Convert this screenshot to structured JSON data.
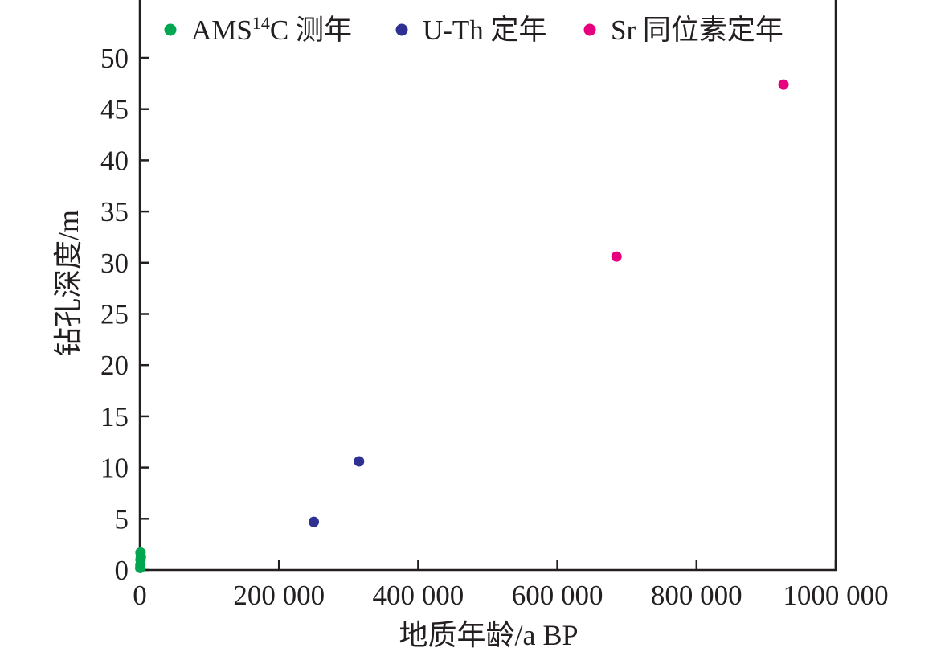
{
  "chart_data": {
    "type": "scatter",
    "xlabel": "地质年龄/a BP",
    "ylabel": "钻孔深度/m",
    "xlim": [
      0,
      1000000
    ],
    "ylim": [
      0,
      50
    ],
    "x_ticks": [
      0,
      200000,
      400000,
      600000,
      800000,
      1000000
    ],
    "x_tick_labels": [
      "0",
      "200 000",
      "400 000",
      "600 000",
      "800 000",
      "1000 000"
    ],
    "y_ticks": [
      0,
      5,
      10,
      15,
      20,
      25,
      30,
      35,
      40,
      45,
      50
    ],
    "y_tick_labels": [
      "0",
      "5",
      "10",
      "15",
      "20",
      "25",
      "30",
      "35",
      "40",
      "45",
      "50"
    ],
    "legend_position": "top",
    "series": [
      {
        "name_parts": {
          "pre": "AMS",
          "sup": "14",
          "post": "C 测年"
        },
        "color": "#00a650",
        "points": [
          [
            1000,
            1.7
          ],
          [
            1500,
            1.3
          ],
          [
            1000,
            1.0
          ],
          [
            800,
            0.5
          ],
          [
            600,
            0.2
          ]
        ]
      },
      {
        "name": "U-Th 定年",
        "color": "#2e3192",
        "points": [
          [
            250000,
            4.7
          ],
          [
            315000,
            10.6
          ]
        ]
      },
      {
        "name": "Sr 同位素定年",
        "color": "#e6007e",
        "points": [
          [
            685000,
            30.6
          ],
          [
            925000,
            47.4
          ]
        ]
      }
    ]
  }
}
